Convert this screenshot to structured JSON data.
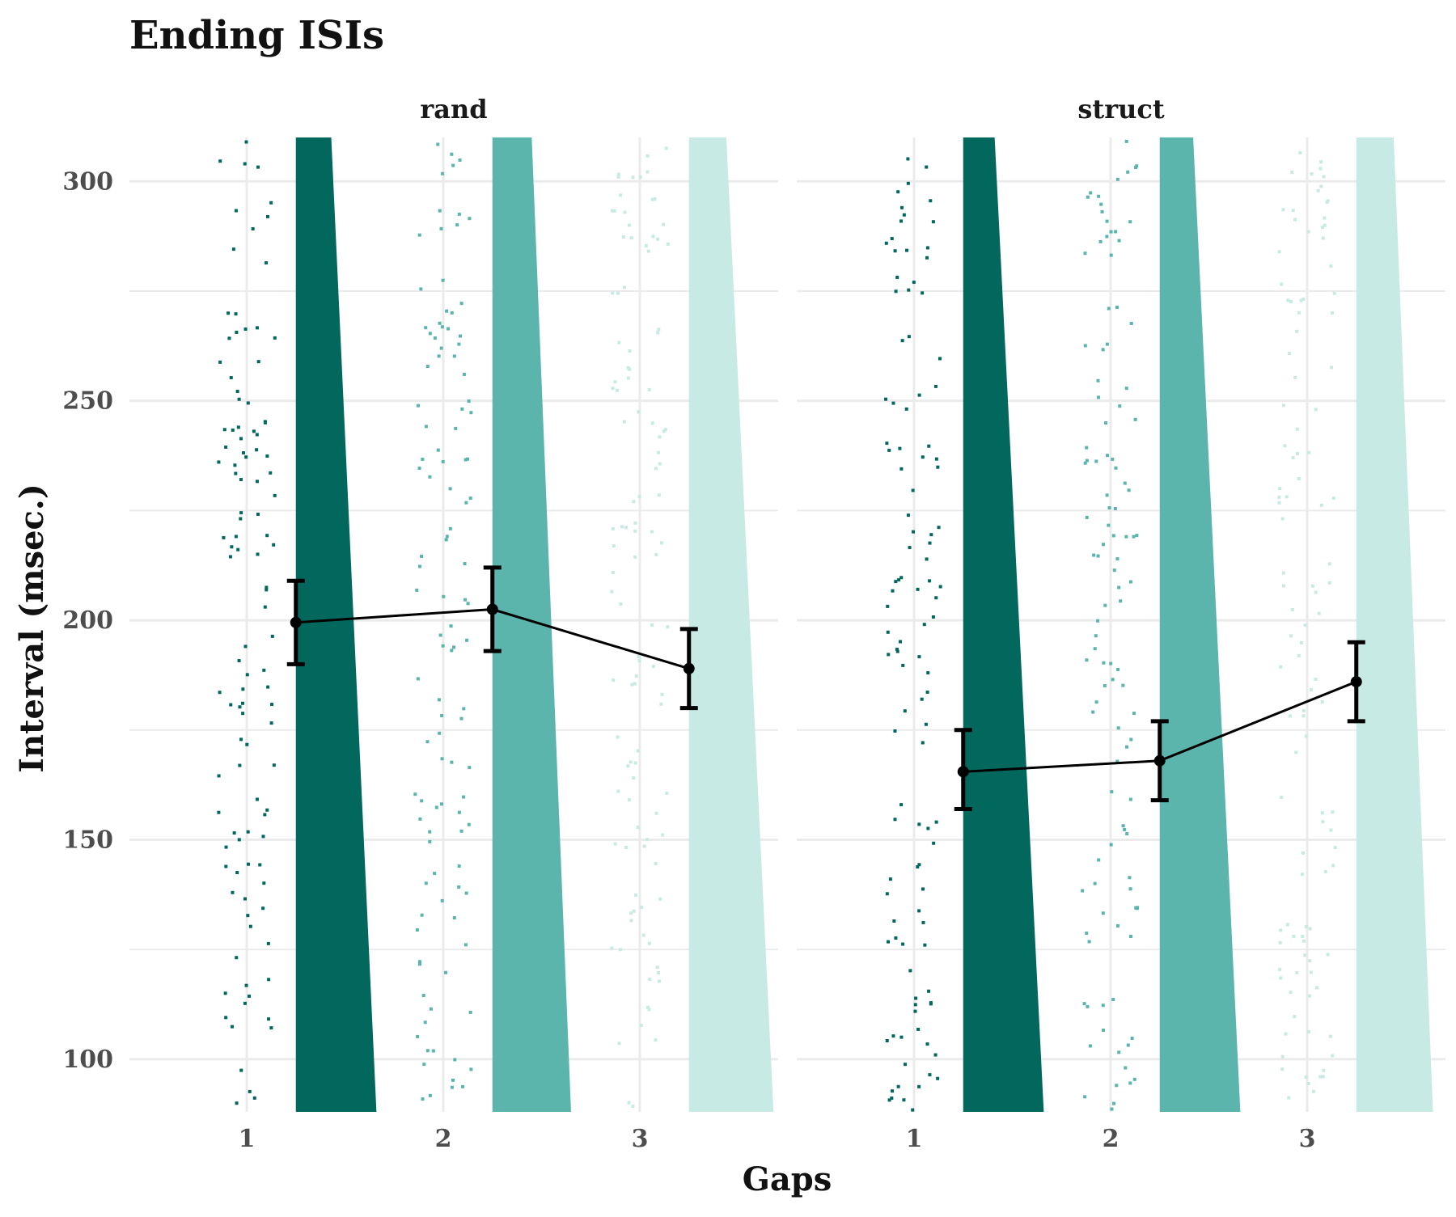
{
  "chart_data": {
    "type": "line",
    "title": "Ending ISIs",
    "xlabel": "Gaps",
    "ylabel": "Interval (msec.)",
    "ylim": [
      88,
      310
    ],
    "y_ticks": [
      100,
      150,
      200,
      250,
      300
    ],
    "x_categories": [
      "1",
      "2",
      "3"
    ],
    "grid": true,
    "legend": "none",
    "colors": {
      "gap1": "#02685E",
      "gap2": "#5BB5AC",
      "gap3": "#C8EAE4",
      "line": "#000000",
      "grid": "#EBEBEB"
    },
    "panels": [
      {
        "name": "rand",
        "means": [
          {
            "gap": 1,
            "mean": 199.5,
            "lower": 190,
            "upper": 209
          },
          {
            "gap": 2,
            "mean": 202.5,
            "lower": 193,
            "upper": 212
          },
          {
            "gap": 3,
            "mean": 189,
            "lower": 180,
            "upper": 198
          }
        ],
        "distributions": [
          {
            "gap": 1,
            "top": 310,
            "bottom": 88,
            "width_top": 0.18,
            "width_bottom": 0.41
          },
          {
            "gap": 2,
            "top": 310,
            "bottom": 88,
            "width_top": 0.2,
            "width_bottom": 0.4
          },
          {
            "gap": 3,
            "top": 310,
            "bottom": 88,
            "width_top": 0.19,
            "width_bottom": 0.43
          }
        ]
      },
      {
        "name": "struct",
        "means": [
          {
            "gap": 1,
            "mean": 165.5,
            "lower": 157,
            "upper": 175
          },
          {
            "gap": 2,
            "mean": 168,
            "lower": 159,
            "upper": 177
          },
          {
            "gap": 3,
            "mean": 186,
            "lower": 177,
            "upper": 195
          }
        ],
        "distributions": [
          {
            "gap": 1,
            "top": 310,
            "bottom": 88,
            "width_top": 0.16,
            "width_bottom": 0.41
          },
          {
            "gap": 2,
            "top": 310,
            "bottom": 88,
            "width_top": 0.17,
            "width_bottom": 0.41
          },
          {
            "gap": 3,
            "top": 310,
            "bottom": 88,
            "width_top": 0.19,
            "width_bottom": 0.39
          }
        ]
      }
    ]
  }
}
